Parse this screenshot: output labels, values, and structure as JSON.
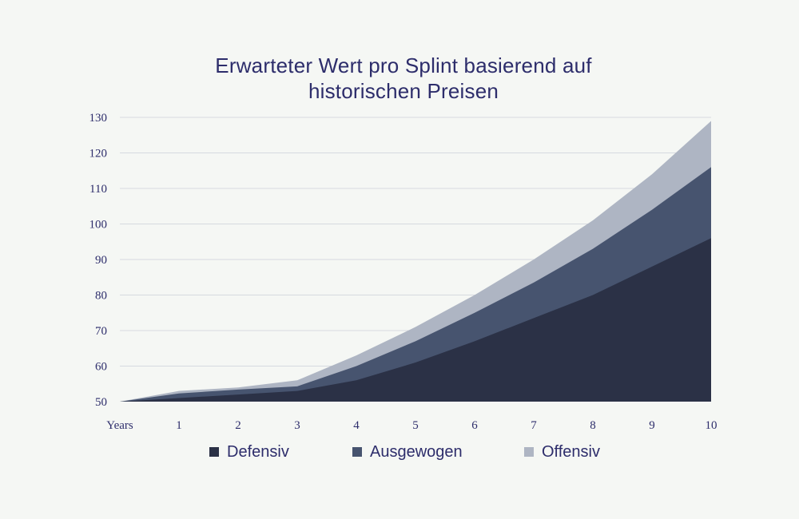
{
  "colors": {
    "background": "#f5f7f4",
    "title": "#2d2d6b",
    "grid": "#d6d9df",
    "defensiv": "#2b3146",
    "ausgewogen": "#47546f",
    "offensiv": "#aeb5c3"
  },
  "chart_data": {
    "type": "area",
    "stacked": false,
    "title": {
      "line1": "Erwarteter Wert pro Splint basierend auf",
      "line2": "historischen Preisen"
    },
    "x_label": "Years",
    "x": [
      0,
      1,
      2,
      3,
      4,
      5,
      6,
      7,
      8,
      9,
      10
    ],
    "x_tick_labels": [
      "1",
      "2",
      "3",
      "4",
      "5",
      "6",
      "7",
      "8",
      "9",
      "10"
    ],
    "ylim": [
      50,
      130
    ],
    "y_ticks": [
      50,
      60,
      70,
      80,
      90,
      100,
      110,
      120,
      130
    ],
    "grid": true,
    "legend_position": "bottom",
    "series": [
      {
        "name": "Offensiv",
        "color_key": "offensiv",
        "values": [
          50,
          53,
          54,
          56,
          63,
          71,
          80,
          90,
          101,
          114,
          129
        ]
      },
      {
        "name": "Ausgewogen",
        "color_key": "ausgewogen",
        "values": [
          50,
          52.3,
          53.4,
          54.3,
          60,
          67,
          75,
          83.5,
          93,
          104,
          116
        ]
      },
      {
        "name": "Defensiv",
        "color_key": "defensiv",
        "values": [
          50,
          51,
          52,
          53,
          56,
          61,
          67,
          73.5,
          80,
          88,
          96
        ]
      }
    ],
    "legend_items": [
      "Defensiv",
      "Ausgewogen",
      "Offensiv"
    ]
  }
}
